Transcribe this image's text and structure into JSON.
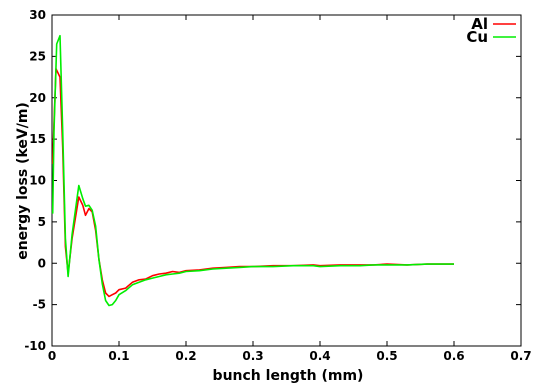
{
  "chart_data": {
    "type": "line",
    "title": "",
    "xlabel": "bunch length (mm)",
    "ylabel": "energy loss (keV/m)",
    "xlim": [
      0,
      0.7
    ],
    "ylim": [
      -10,
      30
    ],
    "x_ticks": [
      0,
      0.1,
      0.2,
      0.3,
      0.4,
      0.5,
      0.6,
      0.7
    ],
    "x_tick_labels": [
      "0",
      "0.1",
      "0.2",
      "0.3",
      "0.4",
      "0.5",
      "0.6",
      "0.7"
    ],
    "y_ticks": [
      -10,
      -5,
      0,
      5,
      10,
      15,
      20,
      25,
      30
    ],
    "y_tick_labels": [
      "-10",
      "-5",
      "0",
      "5",
      "10",
      "15",
      "20",
      "25",
      "30"
    ],
    "grid": false,
    "legend_position": "top-right",
    "series": [
      {
        "name": "Al",
        "color": "#ff0000",
        "points": [
          [
            0.001,
            12
          ],
          [
            0.003,
            17
          ],
          [
            0.006,
            23.5
          ],
          [
            0.012,
            22.5
          ],
          [
            0.016,
            14
          ],
          [
            0.02,
            2
          ],
          [
            0.024,
            -1.2
          ],
          [
            0.03,
            3
          ],
          [
            0.04,
            8
          ],
          [
            0.046,
            7
          ],
          [
            0.05,
            5.8
          ],
          [
            0.055,
            6.6
          ],
          [
            0.06,
            6.2
          ],
          [
            0.065,
            4
          ],
          [
            0.07,
            0.5
          ],
          [
            0.075,
            -2
          ],
          [
            0.08,
            -3.6
          ],
          [
            0.085,
            -4
          ],
          [
            0.09,
            -3.8
          ],
          [
            0.095,
            -3.6
          ],
          [
            0.1,
            -3.2
          ],
          [
            0.11,
            -3
          ],
          [
            0.12,
            -2.3
          ],
          [
            0.13,
            -2
          ],
          [
            0.14,
            -1.9
          ],
          [
            0.15,
            -1.5
          ],
          [
            0.16,
            -1.3
          ],
          [
            0.17,
            -1.2
          ],
          [
            0.18,
            -1.0
          ],
          [
            0.19,
            -1.1
          ],
          [
            0.2,
            -0.9
          ],
          [
            0.22,
            -0.8
          ],
          [
            0.24,
            -0.6
          ],
          [
            0.26,
            -0.5
          ],
          [
            0.28,
            -0.4
          ],
          [
            0.3,
            -0.4
          ],
          [
            0.33,
            -0.3
          ],
          [
            0.36,
            -0.3
          ],
          [
            0.39,
            -0.2
          ],
          [
            0.4,
            -0.3
          ],
          [
            0.43,
            -0.2
          ],
          [
            0.46,
            -0.2
          ],
          [
            0.48,
            -0.2
          ],
          [
            0.5,
            -0.1
          ],
          [
            0.53,
            -0.2
          ],
          [
            0.56,
            -0.1
          ],
          [
            0.6,
            -0.1
          ]
        ]
      },
      {
        "name": "Cu",
        "color": "#00ee00",
        "points": [
          [
            0.001,
            6
          ],
          [
            0.003,
            16
          ],
          [
            0.007,
            26.5
          ],
          [
            0.012,
            27.5
          ],
          [
            0.016,
            16
          ],
          [
            0.02,
            3
          ],
          [
            0.024,
            -1.6
          ],
          [
            0.03,
            3.5
          ],
          [
            0.04,
            9.4
          ],
          [
            0.046,
            7.8
          ],
          [
            0.05,
            6.9
          ],
          [
            0.055,
            7
          ],
          [
            0.06,
            6.4
          ],
          [
            0.065,
            4.5
          ],
          [
            0.07,
            0.5
          ],
          [
            0.075,
            -2.5
          ],
          [
            0.08,
            -4.5
          ],
          [
            0.085,
            -5.1
          ],
          [
            0.09,
            -5.0
          ],
          [
            0.095,
            -4.5
          ],
          [
            0.1,
            -3.8
          ],
          [
            0.11,
            -3.3
          ],
          [
            0.12,
            -2.6
          ],
          [
            0.13,
            -2.3
          ],
          [
            0.14,
            -2.0
          ],
          [
            0.15,
            -1.8
          ],
          [
            0.16,
            -1.6
          ],
          [
            0.17,
            -1.4
          ],
          [
            0.18,
            -1.3
          ],
          [
            0.19,
            -1.2
          ],
          [
            0.2,
            -1.0
          ],
          [
            0.22,
            -0.9
          ],
          [
            0.24,
            -0.7
          ],
          [
            0.26,
            -0.6
          ],
          [
            0.28,
            -0.5
          ],
          [
            0.3,
            -0.4
          ],
          [
            0.33,
            -0.4
          ],
          [
            0.36,
            -0.3
          ],
          [
            0.39,
            -0.3
          ],
          [
            0.4,
            -0.4
          ],
          [
            0.43,
            -0.3
          ],
          [
            0.46,
            -0.3
          ],
          [
            0.48,
            -0.2
          ],
          [
            0.5,
            -0.2
          ],
          [
            0.53,
            -0.2
          ],
          [
            0.56,
            -0.1
          ],
          [
            0.6,
            -0.1
          ]
        ]
      }
    ]
  }
}
